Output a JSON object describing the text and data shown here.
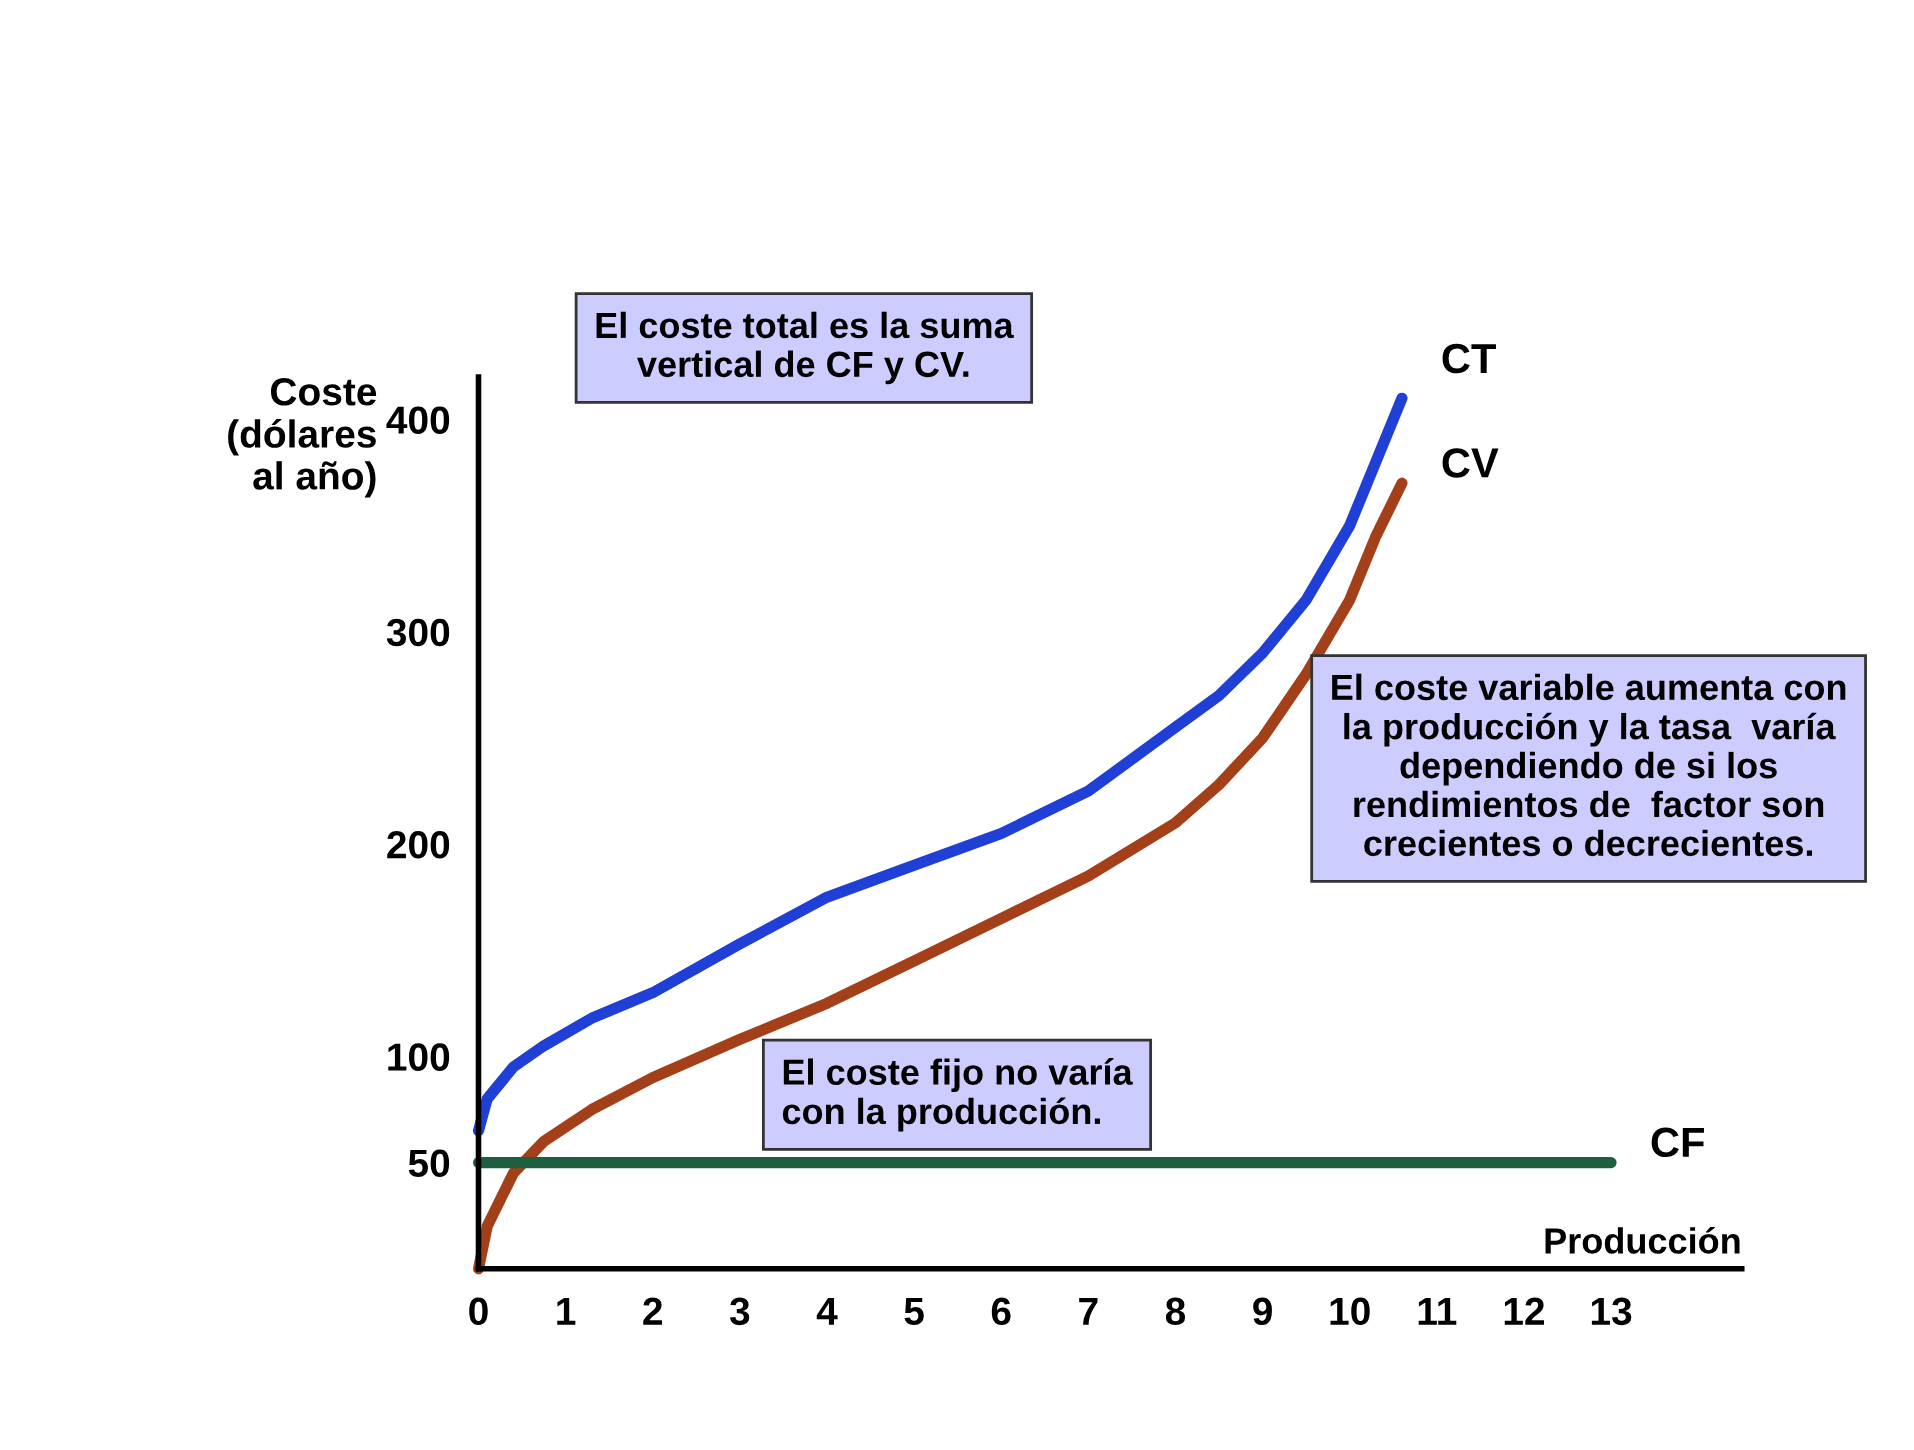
{
  "chart_data": {
    "type": "line",
    "xlabel": "Producción",
    "ylabel": "Coste\n(dólares\nal año)",
    "xlim": [
      0,
      14.5
    ],
    "ylim": [
      0,
      420
    ],
    "xticks": [
      0,
      1,
      2,
      3,
      4,
      5,
      6,
      7,
      8,
      9,
      10,
      11,
      12,
      13
    ],
    "yticks": [
      50,
      100,
      200,
      300,
      400
    ],
    "grid": false,
    "legend": false,
    "marker": "none",
    "line_style": "solid",
    "series": [
      {
        "name": "CT",
        "color": "#1f3fd6",
        "x": [
          0,
          0.1,
          0.4,
          0.75,
          1.3,
          2,
          3,
          4,
          5,
          6,
          7,
          8,
          8.5,
          9,
          9.5,
          10,
          10.3,
          10.6
        ],
        "values": [
          65,
          80,
          95,
          105,
          118,
          130,
          153,
          175,
          190,
          205,
          225,
          255,
          270,
          290,
          315,
          350,
          380,
          410
        ]
      },
      {
        "name": "CV",
        "color": "#a3401a",
        "x": [
          0,
          0.1,
          0.4,
          0.75,
          1.3,
          2,
          3,
          4,
          5,
          6,
          7,
          8,
          8.5,
          9,
          9.5,
          10,
          10.3,
          10.6
        ],
        "values": [
          0,
          20,
          45,
          60,
          75,
          90,
          108,
          125,
          145,
          165,
          185,
          210,
          228,
          250,
          280,
          315,
          345,
          370
        ]
      },
      {
        "name": "CF",
        "color": "#1f5f3f",
        "x": [
          0,
          13
        ],
        "values": [
          50,
          50
        ]
      }
    ],
    "annotations": [
      "El coste total es la suma\nvertical de CF y CV.",
      "El coste variable aumenta con\nla producción y la tasa  varía\ndependiendo de si los\nrendimientos de  factor son\ncrecientes o decrecientes.",
      "El coste fijo no varía\ncon la producción."
    ]
  }
}
